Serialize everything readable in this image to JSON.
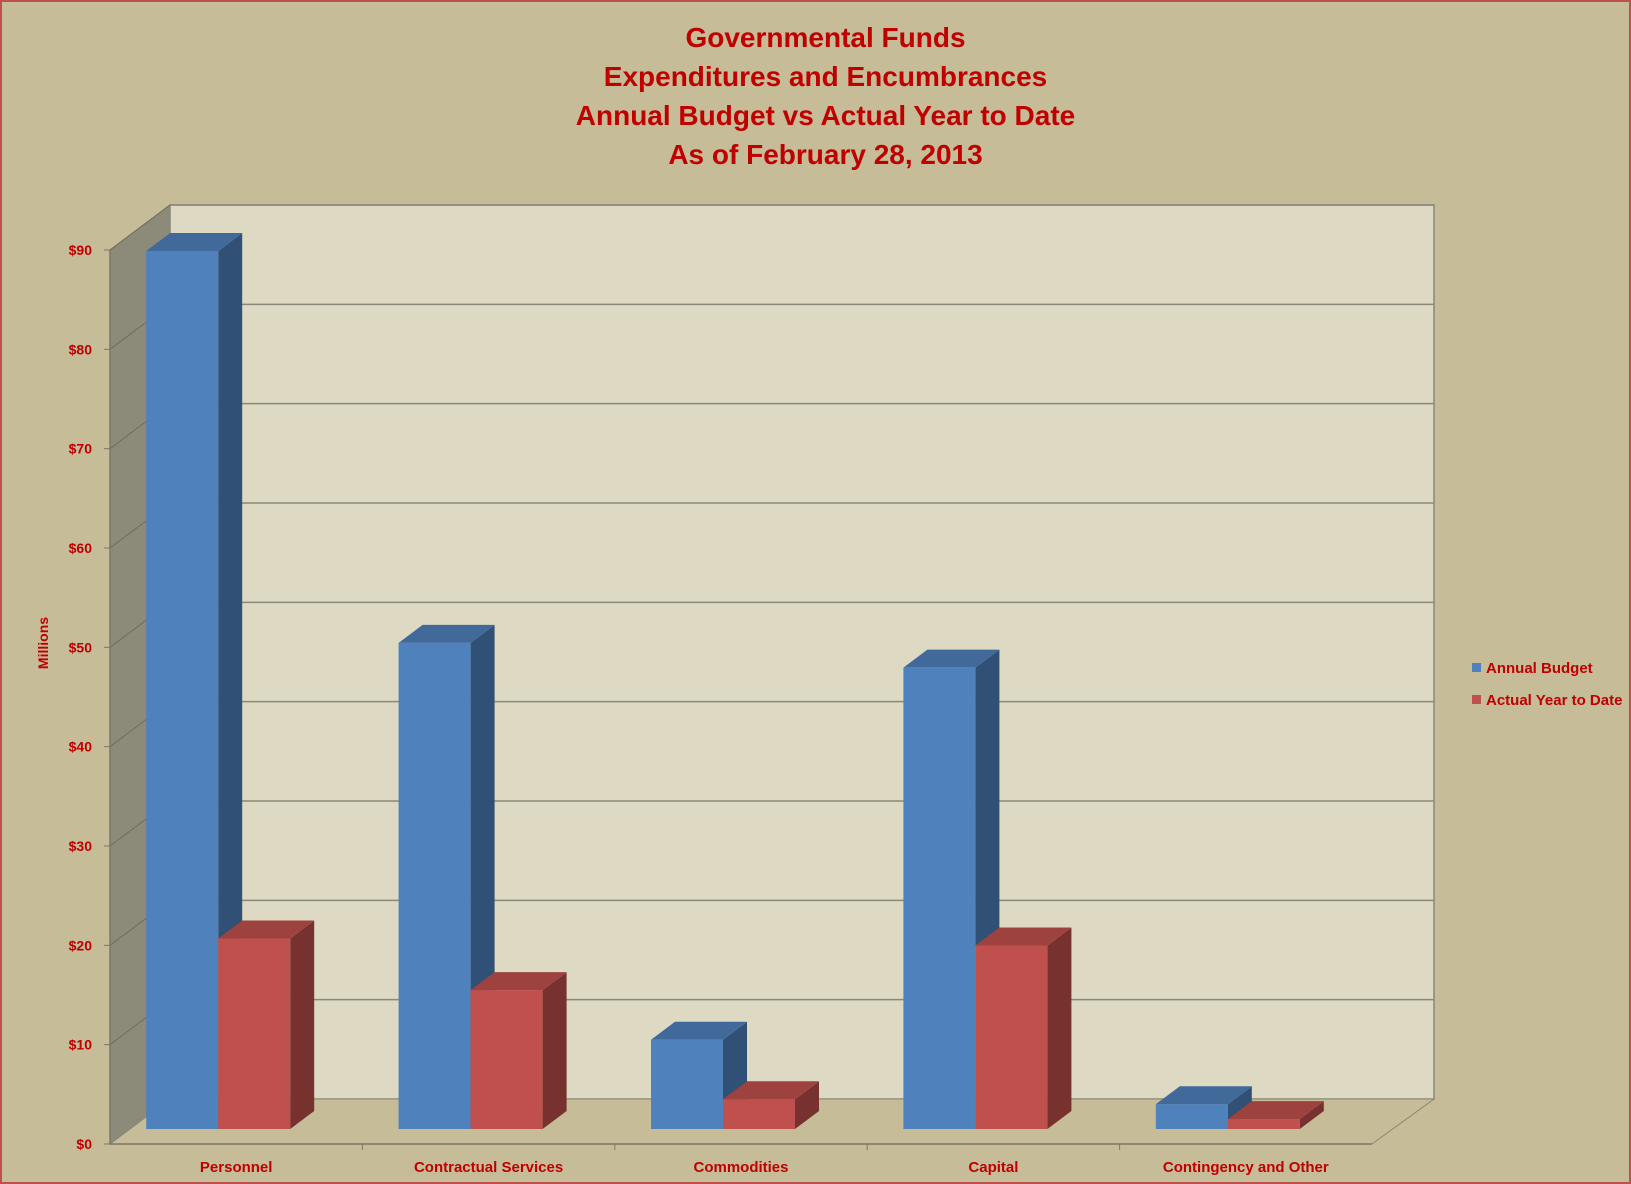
{
  "chart_data": {
    "type": "bar",
    "title": [
      "Governmental Funds",
      "Expenditures and Encumbrances",
      "Annual Budget vs Actual Year to Date",
      "As of February 28, 2013"
    ],
    "ylabel": "Millions",
    "xlabel": "",
    "ylim": [
      0,
      90
    ],
    "yticks": [
      "$0",
      "$10",
      "$20",
      "$30",
      "$40",
      "$50",
      "$60",
      "$70",
      "$80",
      "$90"
    ],
    "categories": [
      "Personnel",
      "Contractual Services",
      "Commodities",
      "Capital",
      "Contingency and Other"
    ],
    "series": [
      {
        "name": "Annual Budget",
        "values": [
          88.5,
          49,
          9,
          46.5,
          2.5
        ],
        "color": "#4f81bd"
      },
      {
        "name": "Actual Year to Date",
        "values": [
          19.2,
          14,
          3,
          18.5,
          1
        ],
        "color": "#c0504d"
      }
    ],
    "grid": true,
    "legend": "right",
    "style": "3d-clustered-column"
  }
}
